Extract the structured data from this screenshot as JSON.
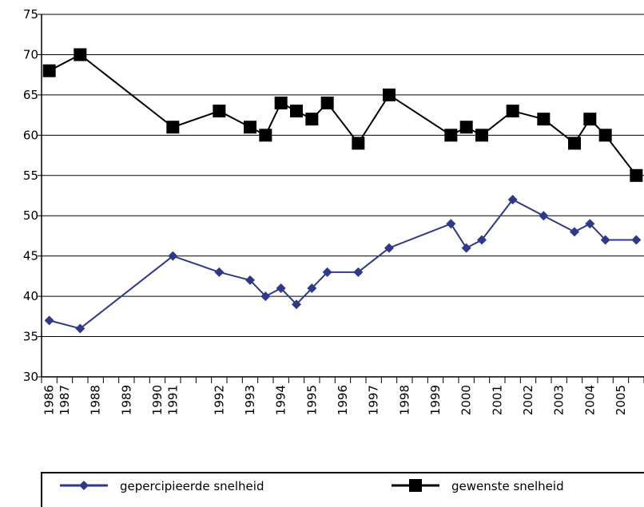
{
  "chart_data": {
    "type": "line",
    "categories": [
      "1986",
      "1987",
      null,
      "1988",
      null,
      "1989",
      null,
      "1990",
      "1991",
      null,
      null,
      "1992",
      null,
      "1993",
      null,
      "1994",
      null,
      "1995",
      null,
      "1996",
      null,
      "1997",
      null,
      "1998",
      null,
      "1999",
      null,
      "2000",
      null,
      "2001",
      null,
      "2002",
      null,
      "2003",
      null,
      "2004",
      null,
      "2005",
      null
    ],
    "series": [
      {
        "name": "gepercipieerde snelheid",
        "color": "#2e3a87",
        "marker": "diamond",
        "values": [
          37,
          null,
          36,
          null,
          null,
          null,
          null,
          null,
          45,
          null,
          null,
          43,
          null,
          42,
          40,
          41,
          39,
          41,
          43,
          null,
          43,
          null,
          46,
          null,
          null,
          null,
          49,
          46,
          47,
          null,
          52,
          null,
          50,
          null,
          48,
          49,
          47,
          null,
          47
        ]
      },
      {
        "name": "gewenste snelheid",
        "color": "#000000",
        "marker": "square",
        "values": [
          68,
          null,
          70,
          null,
          null,
          null,
          null,
          null,
          61,
          null,
          null,
          63,
          null,
          61,
          60,
          64,
          63,
          62,
          64,
          null,
          59,
          null,
          65,
          null,
          null,
          null,
          60,
          61,
          60,
          null,
          63,
          null,
          62,
          null,
          59,
          62,
          60,
          null,
          55
        ]
      }
    ],
    "ylim": [
      30,
      75
    ],
    "yticks": [
      30,
      35,
      40,
      45,
      50,
      55,
      60,
      65,
      70,
      75
    ],
    "grid": true,
    "legend": "bottom"
  }
}
